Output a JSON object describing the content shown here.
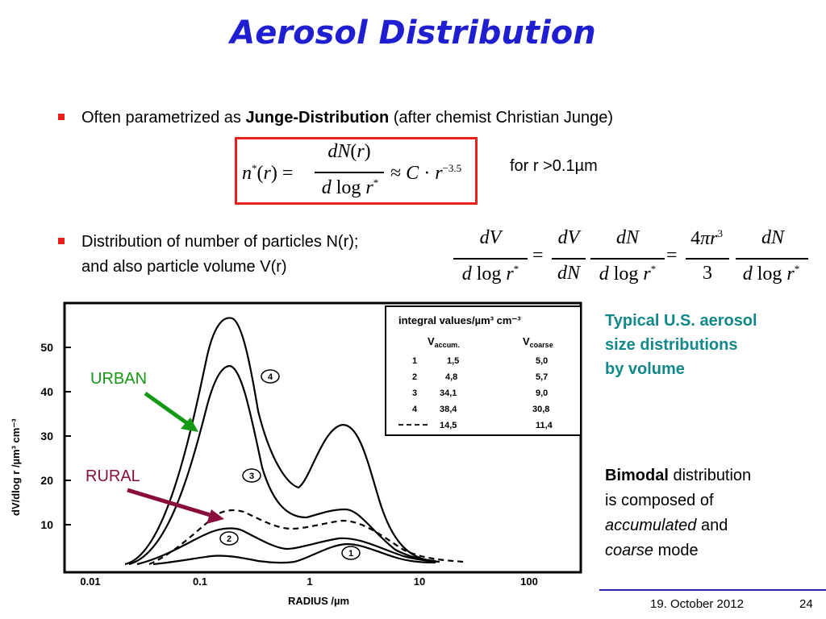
{
  "slide": {
    "title": "Aerosol Distribution",
    "bullet1": {
      "prefix": "Often parametrized as ",
      "bold": "Junge-Distribution",
      "suffix": " (after chemist Christian Junge)"
    },
    "formula_condition": "for r >0.1µm",
    "bullet2_line1": "Distribution of number of particles N(r);",
    "bullet2_line2": "and also particle volume V(r)",
    "side_note": [
      "Typical U.S. aerosol",
      "size distributions",
      "by volume"
    ],
    "bimodal": {
      "bold": "Bimodal",
      "line1_rest": " distribution",
      "line2": "is composed of",
      "accumulated": "accumulated",
      "and": " and",
      "coarse": "coarse",
      "mode": " mode"
    },
    "footer_date": "19. October 2012",
    "page_number": "24",
    "accent_color": "#1f1fd1",
    "bullet_color": "#e8201c",
    "note_color": "#13888a"
  },
  "figure": {
    "urban_label": "URBAN",
    "rural_label": "RURAL",
    "urban_color": "#149914",
    "rural_color": "#8a0e3c",
    "ylabel": "dV/dlog r /µm³ cm⁻³",
    "xlabel": "RADIUS /µm",
    "yticks": [
      "50",
      "40",
      "30",
      "20",
      "10"
    ],
    "xticks": [
      "0.01",
      "0.1",
      "1",
      "10",
      "100"
    ],
    "curve_labels": [
      "4",
      "3",
      "2",
      "1"
    ],
    "table": {
      "title": "integral values/µm³ cm⁻³",
      "col1": "V",
      "col1_sub": "accum.",
      "col2": "V",
      "col2_sub": "coarse",
      "rows": [
        {
          "id": "1",
          "accum": "1,5",
          "coarse": "5,0"
        },
        {
          "id": "2",
          "accum": "4,8",
          "coarse": "5,7"
        },
        {
          "id": "3",
          "accum": "34,1",
          "coarse": "9,0"
        },
        {
          "id": "4",
          "accum": "38,4",
          "coarse": "30,8"
        },
        {
          "id": "",
          "accum": "14,5",
          "coarse": "11,4"
        }
      ]
    }
  }
}
